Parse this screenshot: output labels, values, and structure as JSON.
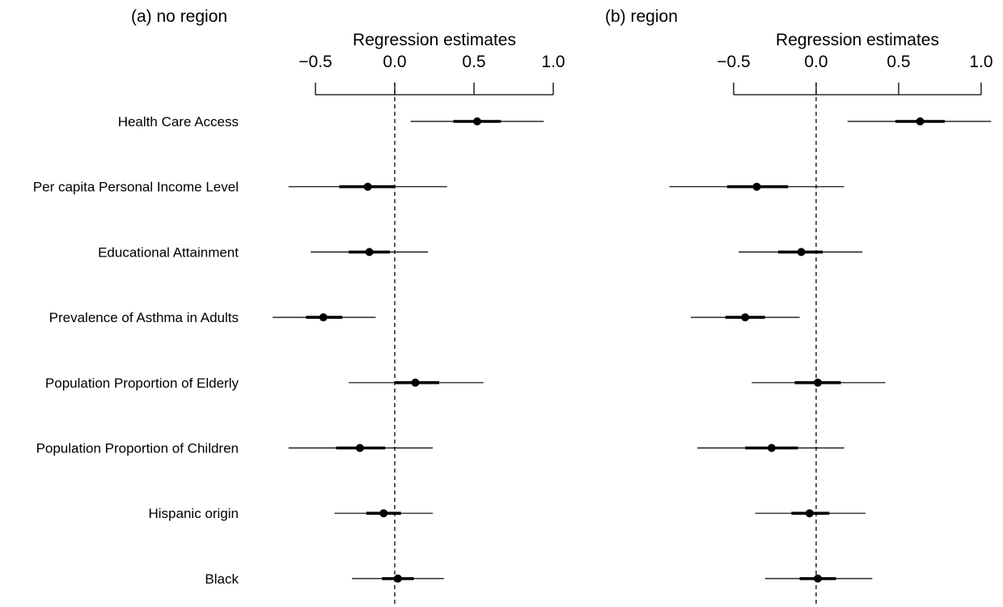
{
  "chart_data": [
    {
      "type": "coefficient-plot",
      "title": "(a) no region",
      "xlabel": "Regression estimates",
      "xlim": [
        -0.5,
        1.0
      ],
      "xticks": [
        -0.5,
        0.0,
        0.5,
        1.0
      ],
      "xtick_labels": [
        "−0.5",
        "0.0",
        "0.5",
        "1.0"
      ],
      "reference_line": 0.0,
      "rows": [
        {
          "label": "Health Care Access",
          "estimate": 0.52,
          "inner": [
            0.37,
            0.67
          ],
          "outer": [
            0.1,
            0.94
          ]
        },
        {
          "label": "Per capita Personal Income Level",
          "estimate": -0.17,
          "inner": [
            -0.35,
            0.0
          ],
          "outer": [
            -0.67,
            0.33
          ]
        },
        {
          "label": "Educational Attainment",
          "estimate": -0.16,
          "inner": [
            -0.29,
            -0.03
          ],
          "outer": [
            -0.53,
            0.21
          ]
        },
        {
          "label": "Prevalence of Asthma in Adults",
          "estimate": -0.45,
          "inner": [
            -0.56,
            -0.33
          ],
          "outer": [
            -0.77,
            -0.12
          ]
        },
        {
          "label": "Population Proportion of Elderly",
          "estimate": 0.13,
          "inner": [
            0.0,
            0.28
          ],
          "outer": [
            -0.29,
            0.56
          ]
        },
        {
          "label": "Population Proportion of Children",
          "estimate": -0.22,
          "inner": [
            -0.37,
            -0.06
          ],
          "outer": [
            -0.67,
            0.24
          ]
        },
        {
          "label": "Hispanic origin",
          "estimate": -0.07,
          "inner": [
            -0.18,
            0.04
          ],
          "outer": [
            -0.38,
            0.24
          ]
        },
        {
          "label": "Black",
          "estimate": 0.02,
          "inner": [
            -0.08,
            0.12
          ],
          "outer": [
            -0.27,
            0.31
          ]
        }
      ]
    },
    {
      "type": "coefficient-plot",
      "title": "(b) region",
      "xlabel": "Regression estimates",
      "xlim": [
        -0.5,
        1.0
      ],
      "xticks": [
        -0.5,
        0.0,
        0.5,
        1.0
      ],
      "xtick_labels": [
        "−0.5",
        "0.0",
        "0.5",
        "1.0"
      ],
      "reference_line": 0.0,
      "rows": [
        {
          "label": "Health Care Access",
          "estimate": 0.63,
          "inner": [
            0.48,
            0.78
          ],
          "outer": [
            0.19,
            1.06
          ]
        },
        {
          "label": "Per capita Personal Income Level",
          "estimate": -0.36,
          "inner": [
            -0.54,
            -0.17
          ],
          "outer": [
            -0.89,
            0.17
          ]
        },
        {
          "label": "Educational Attainment",
          "estimate": -0.09,
          "inner": [
            -0.23,
            0.04
          ],
          "outer": [
            -0.47,
            0.28
          ]
        },
        {
          "label": "Prevalence of Asthma in Adults",
          "estimate": -0.43,
          "inner": [
            -0.55,
            -0.31
          ],
          "outer": [
            -0.76,
            -0.1
          ]
        },
        {
          "label": "Population Proportion of Elderly",
          "estimate": 0.01,
          "inner": [
            -0.13,
            0.15
          ],
          "outer": [
            -0.39,
            0.42
          ]
        },
        {
          "label": "Population Proportion of Children",
          "estimate": -0.27,
          "inner": [
            -0.43,
            -0.11
          ],
          "outer": [
            -0.72,
            0.17
          ]
        },
        {
          "label": "Hispanic origin",
          "estimate": -0.04,
          "inner": [
            -0.15,
            0.08
          ],
          "outer": [
            -0.37,
            0.3
          ]
        },
        {
          "label": "Black",
          "estimate": 0.01,
          "inner": [
            -0.1,
            0.12
          ],
          "outer": [
            -0.31,
            0.34
          ]
        }
      ]
    }
  ],
  "colors": {
    "ink": "#000000",
    "background": "#ffffff"
  }
}
